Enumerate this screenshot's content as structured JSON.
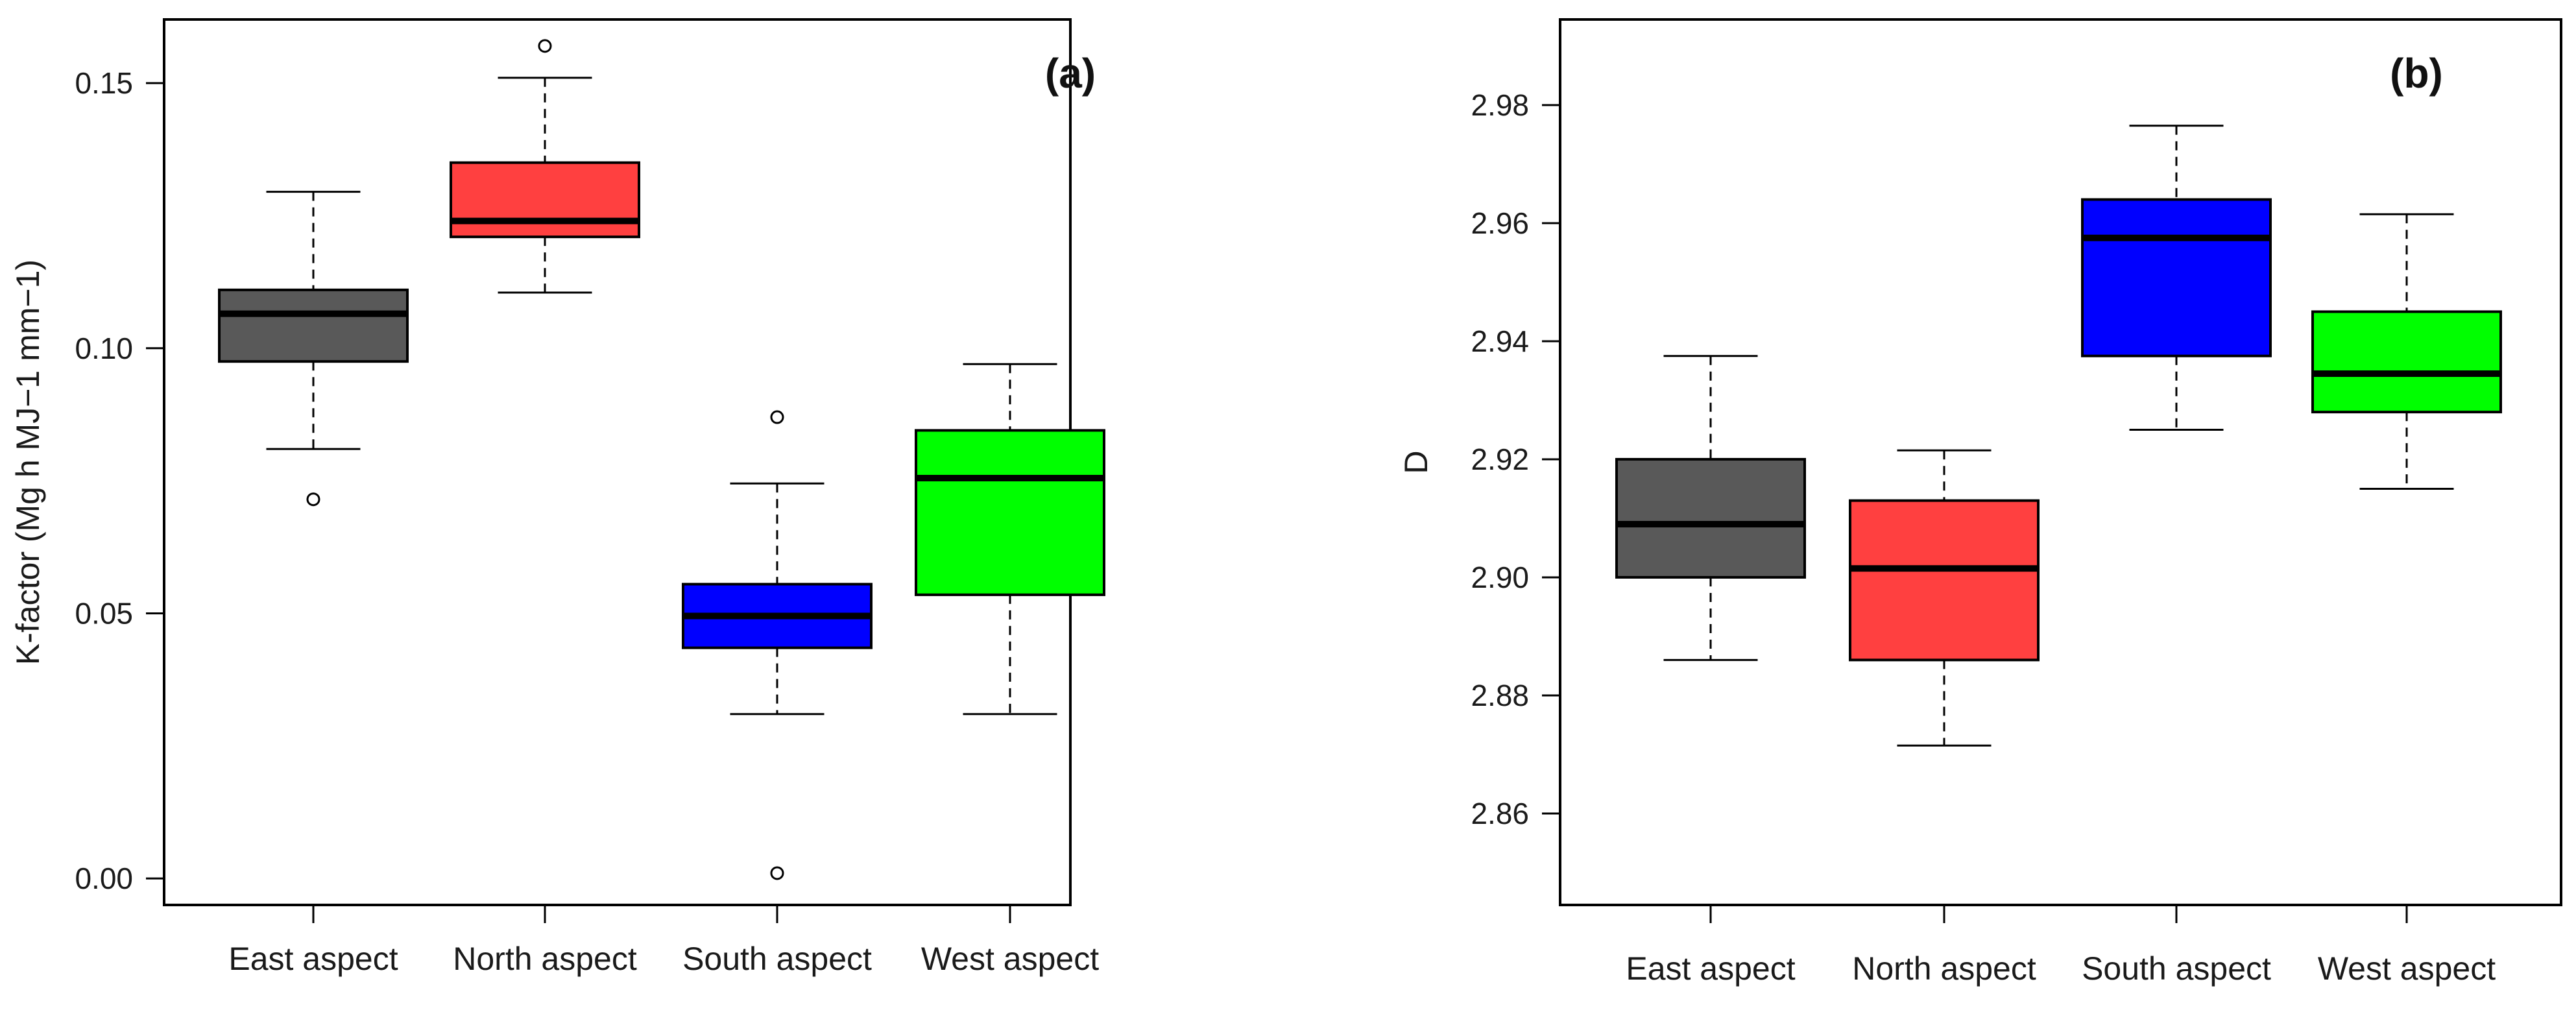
{
  "chart_data": [
    {
      "type": "boxplot",
      "panel_label": "(a)",
      "ylabel": "K-factor (Mg h MJ−1 mm−1)",
      "xlabel": "",
      "ylim": [
        -0.005,
        0.162
      ],
      "yticks": [
        "0.00",
        "0.05",
        "0.10",
        "0.15"
      ],
      "yticks_values": [
        0.0,
        0.05,
        0.1,
        0.15
      ],
      "categories": [
        "East aspect",
        "North aspect",
        "South aspect",
        "West aspect"
      ],
      "colors": [
        "#595959",
        "#ff4040",
        "#0000ff",
        "#00ff00"
      ],
      "boxes": [
        {
          "min": 0.081,
          "q1": 0.0975,
          "median": 0.1065,
          "q3": 0.111,
          "max": 0.1295,
          "outliers": [
            0.0715
          ]
        },
        {
          "min": 0.1105,
          "q1": 0.121,
          "median": 0.124,
          "q3": 0.135,
          "max": 0.151,
          "outliers": [
            0.157
          ]
        },
        {
          "min": 0.031,
          "q1": 0.0435,
          "median": 0.0495,
          "q3": 0.0555,
          "max": 0.0745,
          "outliers": [
            0.087,
            0.001
          ]
        },
        {
          "min": 0.031,
          "q1": 0.0535,
          "median": 0.0755,
          "q3": 0.0845,
          "max": 0.097,
          "outliers": []
        }
      ]
    },
    {
      "type": "boxplot",
      "panel_label": "(b)",
      "ylabel": "D",
      "xlabel": "",
      "ylim": [
        2.8445,
        2.9945
      ],
      "yticks": [
        "2.86",
        "2.88",
        "2.90",
        "2.92",
        "2.94",
        "2.96",
        "2.98"
      ],
      "yticks_values": [
        2.86,
        2.88,
        2.9,
        2.92,
        2.94,
        2.96,
        2.98
      ],
      "categories": [
        "East aspect",
        "North aspect",
        "South aspect",
        "West aspect"
      ],
      "colors": [
        "#595959",
        "#ff4040",
        "#0000ff",
        "#00ff00"
      ],
      "boxes": [
        {
          "min": 2.886,
          "q1": 2.9,
          "median": 2.909,
          "q3": 2.92,
          "max": 2.9375,
          "outliers": []
        },
        {
          "min": 2.8715,
          "q1": 2.886,
          "median": 2.9015,
          "q3": 2.913,
          "max": 2.9215,
          "outliers": []
        },
        {
          "min": 2.925,
          "q1": 2.9375,
          "median": 2.9575,
          "q3": 2.964,
          "max": 2.9765,
          "outliers": []
        },
        {
          "min": 2.915,
          "q1": 2.928,
          "median": 2.9345,
          "q3": 2.945,
          "max": 2.9615,
          "outliers": []
        }
      ]
    }
  ]
}
